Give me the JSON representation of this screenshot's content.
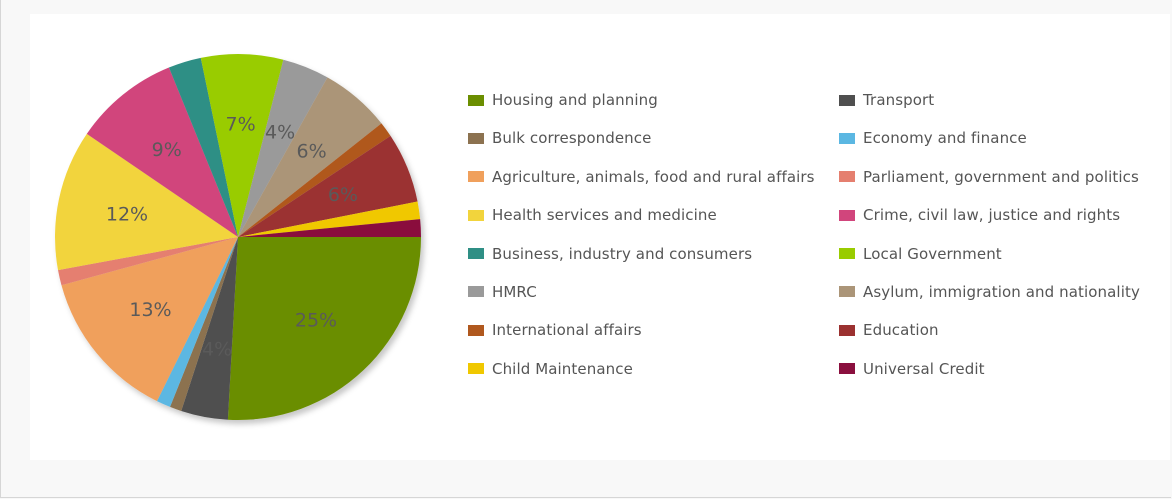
{
  "chart_data": {
    "type": "pie",
    "legend_position": "right",
    "slices": [
      {
        "name": "Housing and planning",
        "value": 25,
        "color": "#6b8e00",
        "label": "25%"
      },
      {
        "name": "Transport",
        "value": 4,
        "color": "#4f4f4f",
        "label": "4%"
      },
      {
        "name": "Bulk correspondence",
        "value": 1,
        "color": "#8c7250",
        "label": ""
      },
      {
        "name": "Economy and finance",
        "value": 1.2,
        "color": "#5bb7e2",
        "label": ""
      },
      {
        "name": "Agriculture, animals, food and rural affairs",
        "value": 13,
        "color": "#f0a05c",
        "label": "13%"
      },
      {
        "name": "Parliament, government and politics",
        "value": 1.3,
        "color": "#e57f6f",
        "label": ""
      },
      {
        "name": "Health services and medicine",
        "value": 12,
        "color": "#f2d43c",
        "label": "12%"
      },
      {
        "name": "Crime, civil law, justice and rights",
        "value": 9,
        "color": "#d1457c",
        "label": "9%"
      },
      {
        "name": "Business, industry and consumers",
        "value": 2.8,
        "color": "#2f8f85",
        "label": ""
      },
      {
        "name": "Local Government",
        "value": 7,
        "color": "#99cc00",
        "label": "7%"
      },
      {
        "name": "HMRC",
        "value": 4,
        "color": "#9a9a9a",
        "label": "4%"
      },
      {
        "name": "Asylum, immigration and nationality",
        "value": 6,
        "color": "#ab9578",
        "label": "6%"
      },
      {
        "name": "International affairs",
        "value": 1.3,
        "color": "#b0581e",
        "label": ""
      },
      {
        "name": "Education",
        "value": 6,
        "color": "#9b3130",
        "label": "6%"
      },
      {
        "name": "Child Maintenance",
        "value": 1.5,
        "color": "#f0c800",
        "label": ""
      },
      {
        "name": "Universal Credit",
        "value": 1.5,
        "color": "#8a0f3e",
        "label": ""
      }
    ]
  }
}
